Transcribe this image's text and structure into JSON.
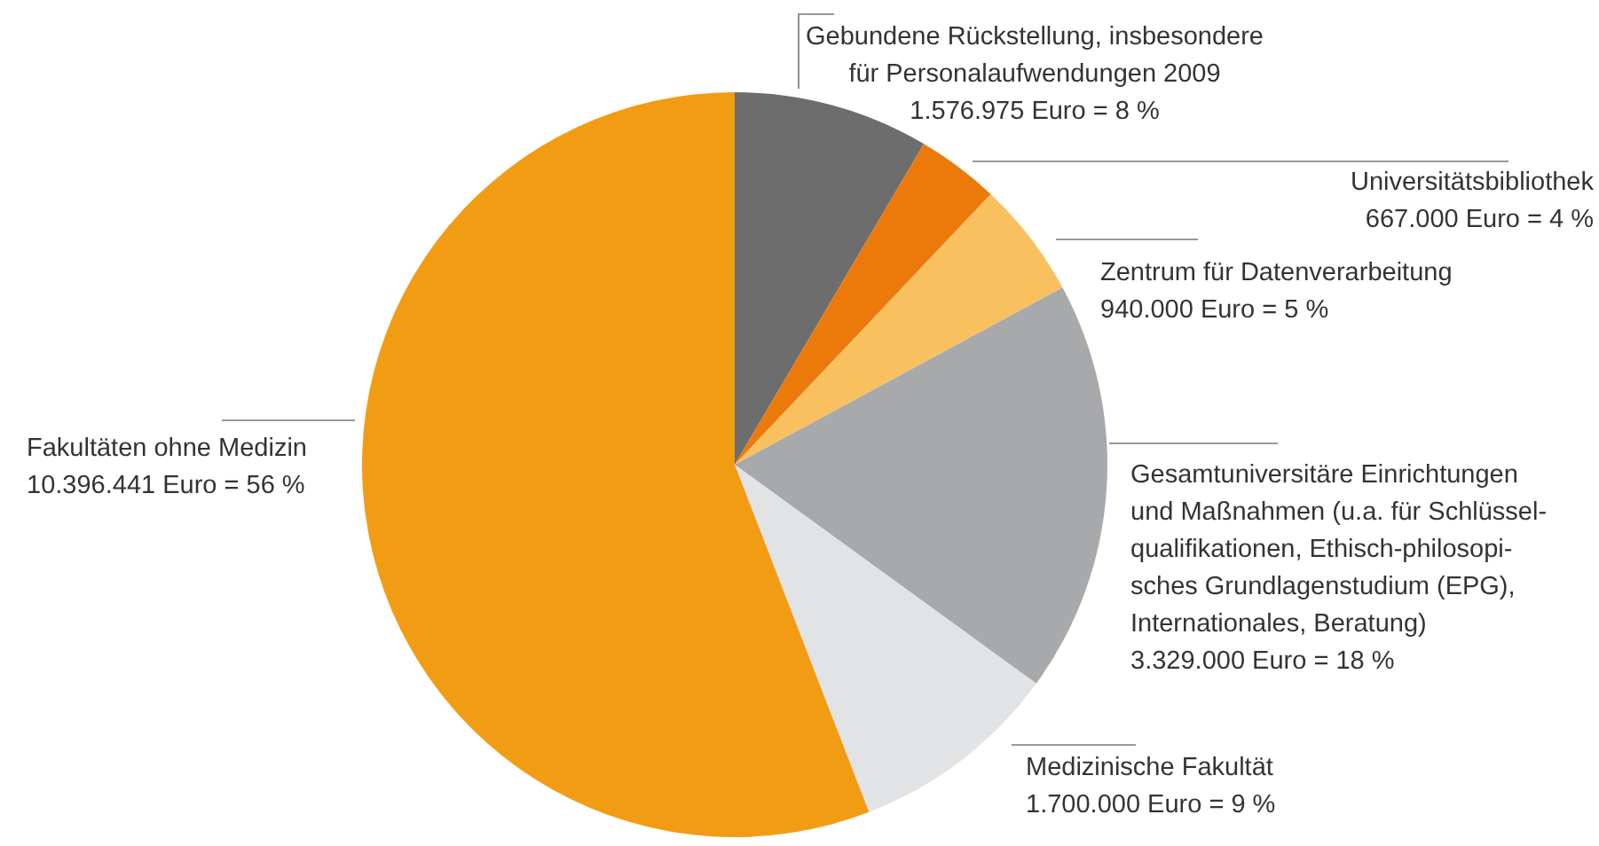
{
  "chart_data": {
    "type": "pie",
    "categories": [
      "Gebundene Rückstellung, insbesondere\nfür Personalaufwendungen 2009",
      "Universitätsbibliothek",
      "Zentrum für Datenverarbeitung",
      "Gesamtuniversitäre Einrichtungen\nund Maßnahmen (u.a. für Schlüssel-\nqualifikationen, Ethisch-philosopi-\nsches Grundlagenstudium (EPG),\nInternationales, Beratung)",
      "Medizinische Fakultät",
      "Fakultäten ohne Medizin"
    ],
    "values": [
      1576975,
      667000,
      940000,
      3329000,
      1700000,
      10396441
    ],
    "value_labels": [
      "1.576.975 Euro = 8 %",
      "667.000 Euro = 4 %",
      "940.000 Euro = 5 %",
      "3.329.000 Euro = 18 %",
      "1.700.000 Euro = 9 %",
      "10.396.441 Euro = 56 %"
    ],
    "colors": [
      "#6d6d6d",
      "#ec7a0b",
      "#f9c060",
      "#a8a9aa",
      "#e2e3e5",
      "#f29c14"
    ]
  }
}
